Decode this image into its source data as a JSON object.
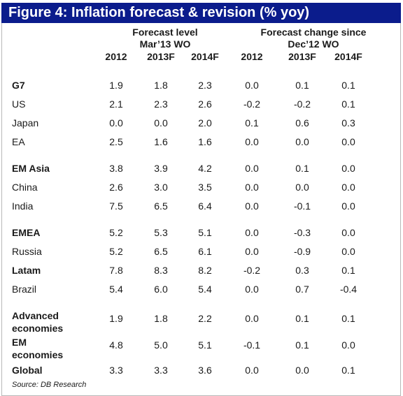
{
  "title": "Figure 4: Inflation forecast & revision (% yoy)",
  "group_headers": {
    "level_line1": "Forecast level",
    "level_line2": "Mar’13 WO",
    "change_line1": "Forecast change since",
    "change_line2": "Dec’12 WO"
  },
  "columns": [
    "2012",
    "2013F",
    "2014F",
    "2012",
    "2013F",
    "2014F"
  ],
  "rows": [
    {
      "label": "G7",
      "bold": true,
      "values": [
        "1.9",
        "1.8",
        "2.3",
        "0.0",
        "0.1",
        "0.1"
      ]
    },
    {
      "label": "US",
      "bold": false,
      "values": [
        "2.1",
        "2.3",
        "2.6",
        "-0.2",
        "-0.2",
        "0.1"
      ]
    },
    {
      "label": "Japan",
      "bold": false,
      "values": [
        "0.0",
        "0.0",
        "2.0",
        "0.1",
        "0.6",
        "0.3"
      ]
    },
    {
      "label": "EA",
      "bold": false,
      "values": [
        "2.5",
        "1.6",
        "1.6",
        "0.0",
        "0.0",
        "0.0"
      ]
    },
    {
      "label": "EM Asia",
      "bold": true,
      "values": [
        "3.8",
        "3.9",
        "4.2",
        "0.0",
        "0.1",
        "0.0"
      ]
    },
    {
      "label": "China",
      "bold": false,
      "values": [
        "2.6",
        "3.0",
        "3.5",
        "0.0",
        "0.0",
        "0.0"
      ]
    },
    {
      "label": "India",
      "bold": false,
      "values": [
        "7.5",
        "6.5",
        "6.4",
        "0.0",
        "-0.1",
        "0.0"
      ]
    },
    {
      "label": "EMEA",
      "bold": true,
      "values": [
        "5.2",
        "5.3",
        "5.1",
        "0.0",
        "-0.3",
        "0.0"
      ]
    },
    {
      "label": "Russia",
      "bold": false,
      "values": [
        "5.2",
        "6.5",
        "6.1",
        "0.0",
        "-0.9",
        "0.0"
      ]
    },
    {
      "label": "Latam",
      "bold": true,
      "values": [
        "7.8",
        "8.3",
        "8.2",
        "-0.2",
        "0.3",
        "0.1"
      ]
    },
    {
      "label": "Brazil",
      "bold": false,
      "values": [
        "5.4",
        "6.0",
        "5.4",
        "0.0",
        "0.7",
        "-0.4"
      ]
    },
    {
      "label": "Advanced economies",
      "bold": true,
      "values": [
        "1.9",
        "1.8",
        "2.2",
        "0.0",
        "0.1",
        "0.1"
      ]
    },
    {
      "label": "EM economies",
      "bold": true,
      "values": [
        "4.8",
        "5.0",
        "5.1",
        "-0.1",
        "0.1",
        "0.0"
      ]
    },
    {
      "label": "Global",
      "bold": true,
      "values": [
        "3.3",
        "3.3",
        "3.6",
        "0.0",
        "0.0",
        "0.1"
      ]
    }
  ],
  "source": "Source: DB Research",
  "colors": {
    "title_bg": "#0b1c8c",
    "title_text": "#ffffff"
  }
}
